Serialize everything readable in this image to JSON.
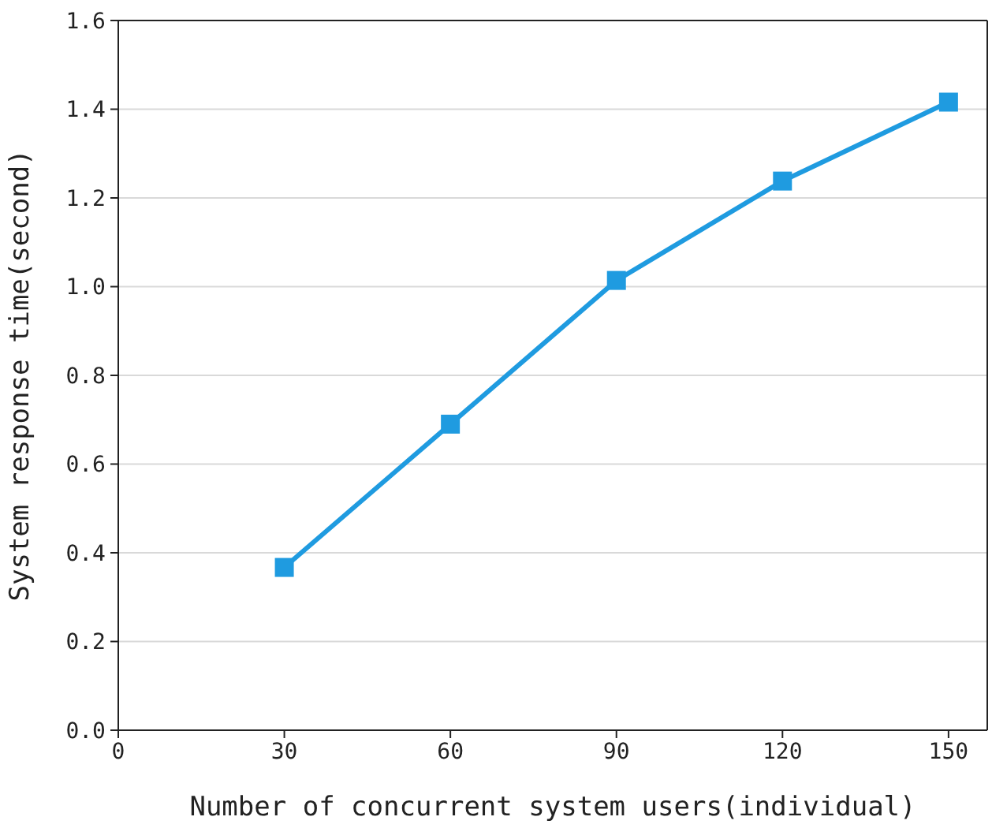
{
  "chart_data": {
    "type": "line",
    "xlabel": "Number of concurrent system users(individual)",
    "ylabel": "System response time(second)",
    "x": [
      30,
      60,
      90,
      120,
      150
    ],
    "series": [
      {
        "color": "#1f9be0",
        "values": [
          0.367,
          0.69,
          1.014,
          1.238,
          1.416
        ]
      }
    ],
    "xlim": [
      0,
      157
    ],
    "xticks": [
      0,
      30,
      60,
      90,
      120,
      150
    ],
    "ylim": [
      0,
      1.6
    ],
    "yticks": [
      {
        "value": 0,
        "label": "0.0"
      },
      0.2,
      0.4,
      0.6,
      0.8,
      {
        "value": 1,
        "label": "1.0"
      },
      1.2,
      1.4,
      1.6
    ],
    "grid": "y",
    "marker": "square",
    "line_style": "solid"
  }
}
